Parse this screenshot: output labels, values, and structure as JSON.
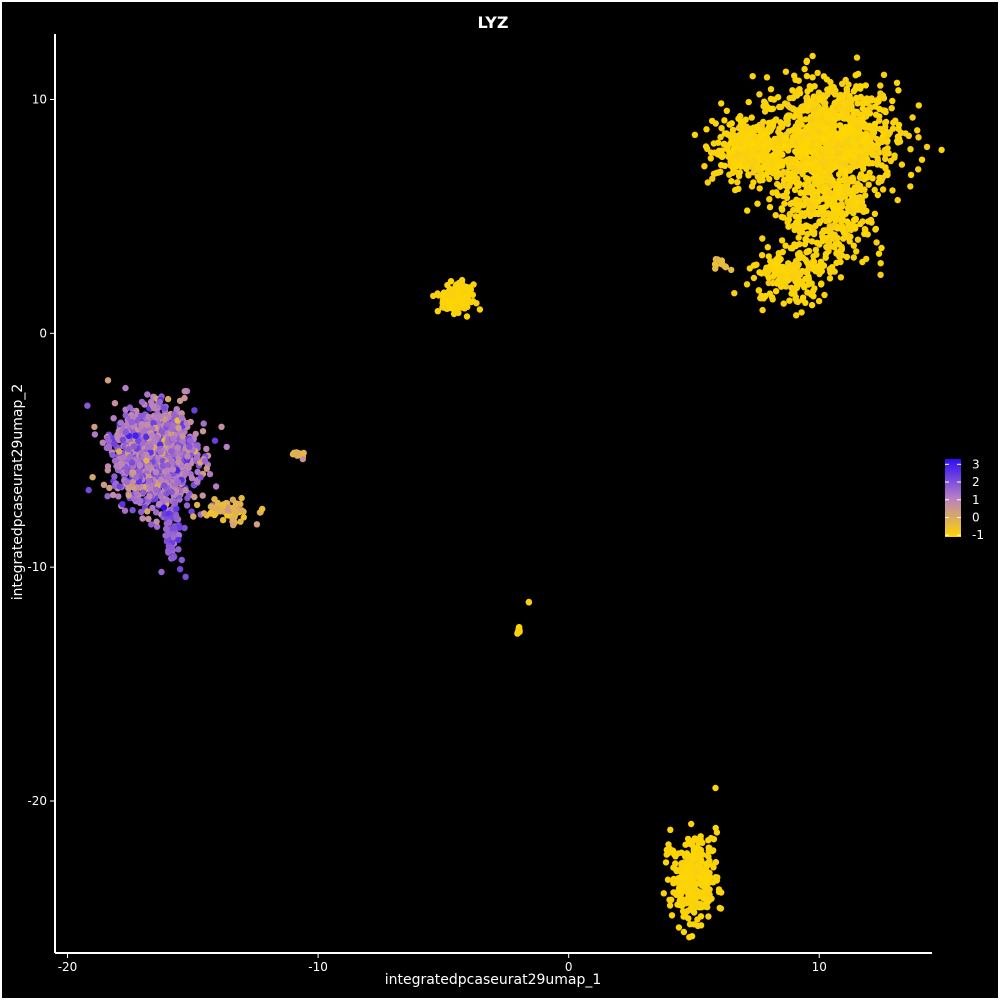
{
  "chart_data": {
    "type": "scatter",
    "title": "LYZ",
    "xlabel": "integratedpcaseurat29umap_1",
    "ylabel": "integratedpcaseurat29umap_2",
    "xlim": [
      -20.5,
      14.5
    ],
    "ylim": [
      -26.5,
      12.8
    ],
    "xticks": [
      -20,
      -10,
      0,
      10
    ],
    "yticks": [
      -20,
      -10,
      0,
      10
    ],
    "colorbar": {
      "ticks": [
        3,
        2,
        1,
        0,
        -1
      ],
      "min": -1.1,
      "max": 3.3,
      "low_color": "#ffd700",
      "mid_color": "#b77fc5",
      "high_color": "#2f0df5"
    },
    "clusters": [
      {
        "name": "large-cluster-top-right-main",
        "cx": 10.3,
        "cy": 8.3,
        "sx": 1.4,
        "sy": 1.2,
        "n": 1100,
        "value_mean": -1.0,
        "value_sd": 0.08
      },
      {
        "name": "large-cluster-top-right-left-lobe",
        "cx": 7.2,
        "cy": 7.8,
        "sx": 0.7,
        "sy": 0.6,
        "n": 320,
        "value_mean": -1.0,
        "value_sd": 0.08
      },
      {
        "name": "large-cluster-top-right-stem",
        "cx": 10.3,
        "cy": 5.2,
        "sx": 0.9,
        "sy": 1.3,
        "n": 420,
        "value_mean": -1.0,
        "value_sd": 0.08
      },
      {
        "name": "large-cluster-top-right-lower-lobe",
        "cx": 8.8,
        "cy": 2.4,
        "sx": 0.8,
        "sy": 0.6,
        "n": 160,
        "value_mean": -1.0,
        "value_sd": 0.08
      },
      {
        "name": "small-orange-group",
        "cx": 6.2,
        "cy": 3.0,
        "sx": 0.25,
        "sy": 0.15,
        "n": 14,
        "value_mean": -0.4,
        "value_sd": 0.2
      },
      {
        "name": "cluster-center-small",
        "cx": -4.5,
        "cy": 1.5,
        "sx": 0.3,
        "sy": 0.28,
        "n": 170,
        "value_mean": -1.0,
        "value_sd": 0.05
      },
      {
        "name": "cluster-bottom",
        "cx": 5.0,
        "cy": -23.3,
        "sx": 0.45,
        "sy": 0.9,
        "n": 320,
        "value_mean": -1.0,
        "value_sd": 0.05
      },
      {
        "name": "cluster-left-main",
        "cx": -16.5,
        "cy": -5.2,
        "sx": 0.8,
        "sy": 1.0,
        "n": 1400,
        "value_mean": 1.3,
        "value_sd": 0.6
      },
      {
        "name": "cluster-left-tail-down",
        "cx": -15.8,
        "cy": -8.6,
        "sx": 0.2,
        "sy": 0.6,
        "n": 60,
        "value_mean": 1.9,
        "value_sd": 0.4
      },
      {
        "name": "cluster-left-tail-right",
        "cx": -13.6,
        "cy": -7.6,
        "sx": 0.5,
        "sy": 0.25,
        "n": 70,
        "value_mean": -0.2,
        "value_sd": 0.3
      },
      {
        "name": "cluster-mid-left-small",
        "cx": -10.8,
        "cy": -5.2,
        "sx": 0.12,
        "sy": 0.08,
        "n": 12,
        "value_mean": 0.0,
        "value_sd": 0.5
      },
      {
        "name": "cluster-tiny-a",
        "cx": -2.0,
        "cy": -12.7,
        "sx": 0.05,
        "sy": 0.1,
        "n": 10,
        "value_mean": -1.0,
        "value_sd": 0.05
      },
      {
        "name": "cluster-tiny-b",
        "cx": -1.6,
        "cy": -11.5,
        "sx": 0.02,
        "sy": 0.02,
        "n": 2,
        "value_mean": -1.0,
        "value_sd": 0.05
      }
    ]
  }
}
